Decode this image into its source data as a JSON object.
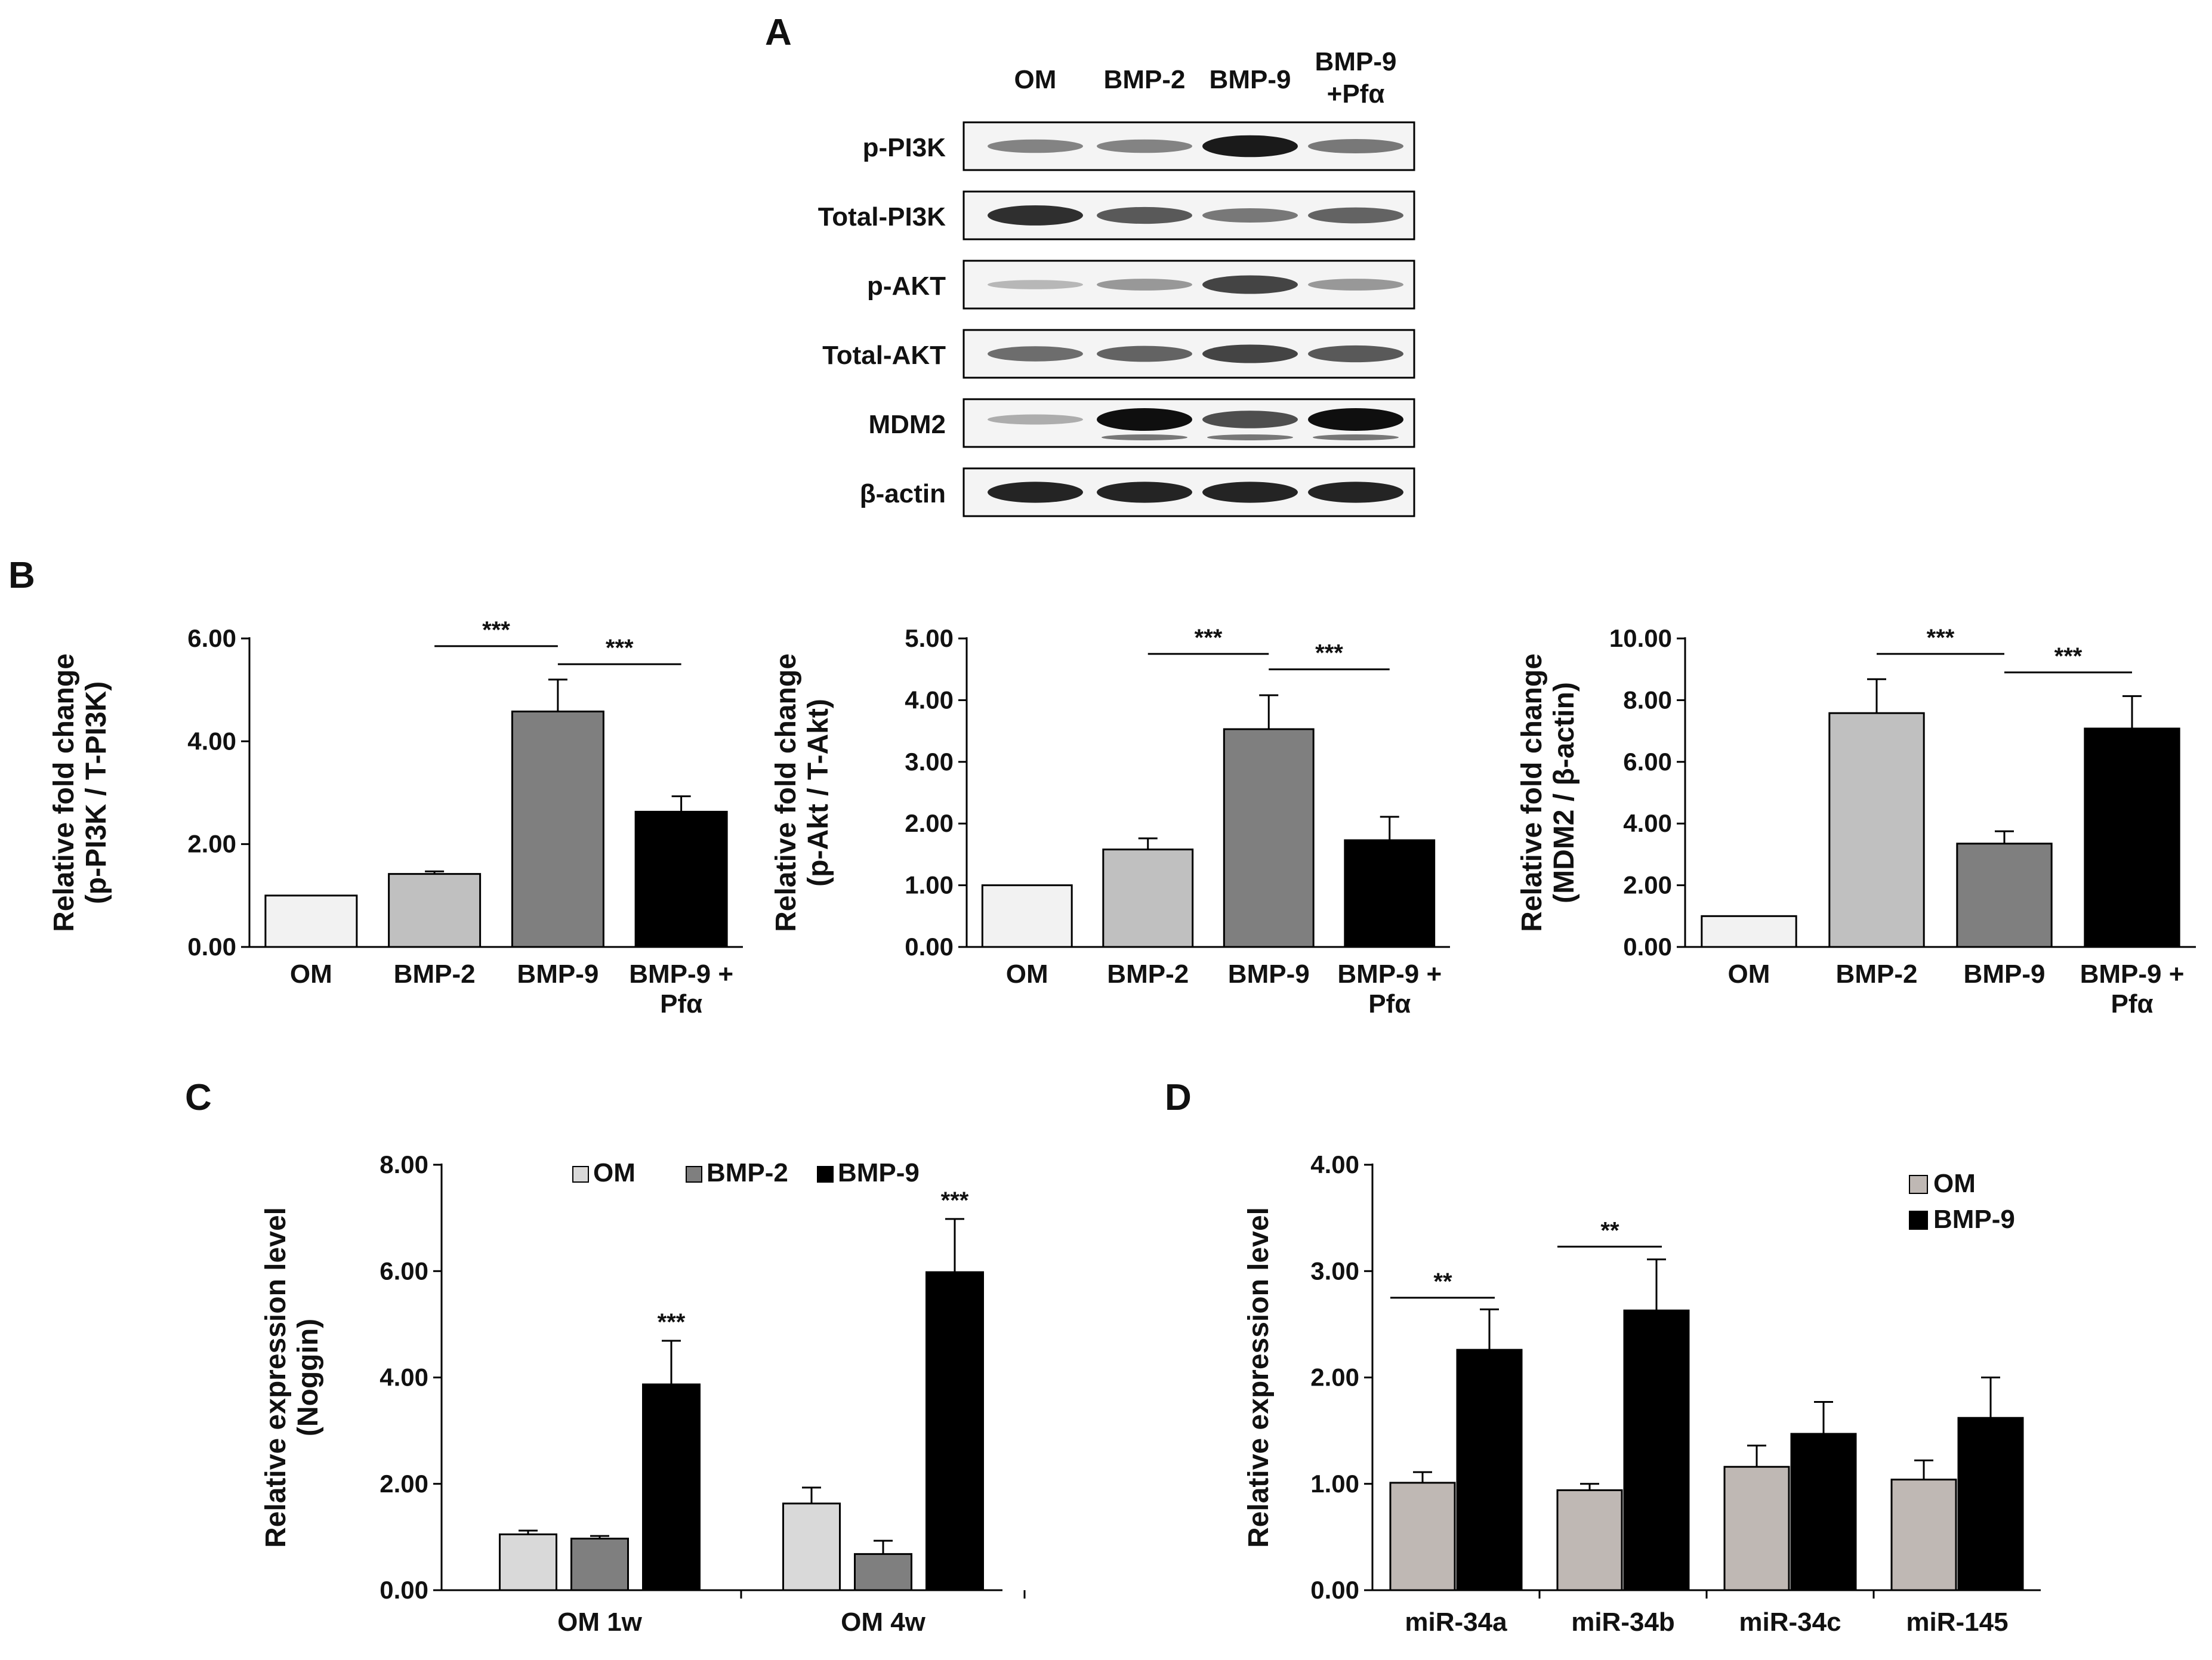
{
  "panels": {
    "a": "A",
    "b": "B",
    "c": "C",
    "d": "D"
  },
  "western_blot": {
    "lanes": [
      {
        "line1": "OM",
        "line2": ""
      },
      {
        "line1": "BMP-2",
        "line2": ""
      },
      {
        "line1": "BMP-9",
        "line2": ""
      },
      {
        "line1": "BMP-9",
        "line2": "+Pfα"
      }
    ],
    "rows": [
      {
        "label": "p-PI3K",
        "intensity": [
          0.45,
          0.45,
          0.95,
          0.5
        ]
      },
      {
        "label": "Total-PI3K",
        "intensity": [
          0.85,
          0.65,
          0.5,
          0.6
        ]
      },
      {
        "label": "p-AKT",
        "intensity": [
          0.2,
          0.35,
          0.75,
          0.35
        ]
      },
      {
        "label": "Total-AKT",
        "intensity": [
          0.55,
          0.6,
          0.75,
          0.65
        ]
      },
      {
        "label": "MDM2",
        "intensity": [
          0.25,
          1.0,
          0.7,
          1.0
        ]
      },
      {
        "label": "β-actin",
        "intensity": [
          0.9,
          0.9,
          0.9,
          0.9
        ]
      }
    ]
  },
  "chart_data": [
    {
      "id": "b1",
      "type": "bar",
      "ylabel_lines": [
        "Relative fold change",
        "(p-PI3K / T-PI3K)"
      ],
      "categories": [
        [
          "OM"
        ],
        [
          "BMP-2"
        ],
        [
          "BMP-9"
        ],
        [
          "BMP-9 +",
          "Pfα"
        ]
      ],
      "values": [
        1.0,
        1.42,
        4.58,
        2.63
      ],
      "errors": [
        0.0,
        0.05,
        0.62,
        0.3
      ],
      "colors": [
        "#f2f2f2",
        "#c0c0c0",
        "#7f7f7f",
        "#000000"
      ],
      "ylim": [
        0,
        6
      ],
      "yticks": [
        "0.00",
        "2.00",
        "4.00",
        "6.00"
      ],
      "ystep": 2,
      "sig": [
        {
          "from": 1,
          "to": 2,
          "label": "***",
          "y": 5.85
        },
        {
          "from": 2,
          "to": 3,
          "label": "***",
          "y": 5.5
        }
      ]
    },
    {
      "id": "b2",
      "type": "bar",
      "ylabel_lines": [
        "Relative fold change",
        "(p-Akt / T-Akt)"
      ],
      "categories": [
        [
          "OM"
        ],
        [
          "BMP-2"
        ],
        [
          "BMP-9"
        ],
        [
          "BMP-9 +",
          "Pfα"
        ]
      ],
      "values": [
        1.0,
        1.58,
        3.53,
        1.73
      ],
      "errors": [
        0.0,
        0.18,
        0.55,
        0.38
      ],
      "colors": [
        "#f2f2f2",
        "#c0c0c0",
        "#7f7f7f",
        "#000000"
      ],
      "ylim": [
        0,
        5
      ],
      "yticks": [
        "0.00",
        "1.00",
        "2.00",
        "3.00",
        "4.00",
        "5.00"
      ],
      "ystep": 1,
      "sig": [
        {
          "from": 1,
          "to": 2,
          "label": "***",
          "y": 4.75
        },
        {
          "from": 2,
          "to": 3,
          "label": "***",
          "y": 4.5
        }
      ]
    },
    {
      "id": "b3",
      "type": "bar",
      "ylabel_lines": [
        "Relative fold change",
        "(MDM2 / β-actin)"
      ],
      "categories": [
        [
          "OM"
        ],
        [
          "BMP-2"
        ],
        [
          "BMP-9"
        ],
        [
          "BMP-9 +",
          "Pfα"
        ]
      ],
      "values": [
        1.0,
        7.58,
        3.35,
        7.08
      ],
      "errors": [
        0.0,
        1.1,
        0.4,
        1.05
      ],
      "colors": [
        "#f2f2f2",
        "#c0c0c0",
        "#7f7f7f",
        "#000000"
      ],
      "ylim": [
        0,
        10
      ],
      "yticks": [
        "0.00",
        "2.00",
        "4.00",
        "6.00",
        "8.00",
        "10.00"
      ],
      "ystep": 2,
      "sig": [
        {
          "from": 1,
          "to": 2,
          "label": "***",
          "y": 9.5
        },
        {
          "from": 2,
          "to": 3,
          "label": "***",
          "y": 8.9
        }
      ]
    },
    {
      "id": "c",
      "type": "bar",
      "ylabel_lines": [
        "Relative expression level",
        "(Noggin)"
      ],
      "categories": [
        "OM 1w",
        "OM 4w"
      ],
      "series": [
        {
          "name": "OM",
          "color": "#d9d9d9",
          "values": [
            1.05,
            1.63
          ],
          "errors": [
            0.07,
            0.3
          ]
        },
        {
          "name": "BMP-2",
          "color": "#7f7f7f",
          "values": [
            0.97,
            0.68
          ],
          "errors": [
            0.05,
            0.25
          ]
        },
        {
          "name": "BMP-9",
          "color": "#000000",
          "values": [
            3.87,
            5.98
          ],
          "errors": [
            0.82,
            1.0
          ]
        }
      ],
      "ylim": [
        0,
        8
      ],
      "yticks": [
        "0.00",
        "2.00",
        "4.00",
        "6.00",
        "8.00"
      ],
      "ystep": 2,
      "stars": [
        "***",
        "***"
      ]
    },
    {
      "id": "d",
      "type": "bar",
      "ylabel_lines": [
        "Relative expression level"
      ],
      "categories": [
        "miR-34a",
        "miR-34b",
        "miR-34c",
        "miR-145"
      ],
      "series": [
        {
          "name": "OM",
          "color": "#bfb8b4",
          "values": [
            1.01,
            0.94,
            1.16,
            1.04
          ],
          "errors": [
            0.1,
            0.06,
            0.2,
            0.18
          ]
        },
        {
          "name": "BMP-9",
          "color": "#000000",
          "values": [
            2.26,
            2.63,
            1.47,
            1.62
          ],
          "errors": [
            0.38,
            0.48,
            0.3,
            0.38
          ]
        }
      ],
      "ylim": [
        0,
        4
      ],
      "yticks": [
        "0.00",
        "1.00",
        "2.00",
        "3.00",
        "4.00"
      ],
      "ystep": 1,
      "sig": [
        {
          "cat": 0,
          "label": "**",
          "y": 2.75
        },
        {
          "cat": 1,
          "label": "**",
          "y": 3.23
        }
      ]
    }
  ]
}
